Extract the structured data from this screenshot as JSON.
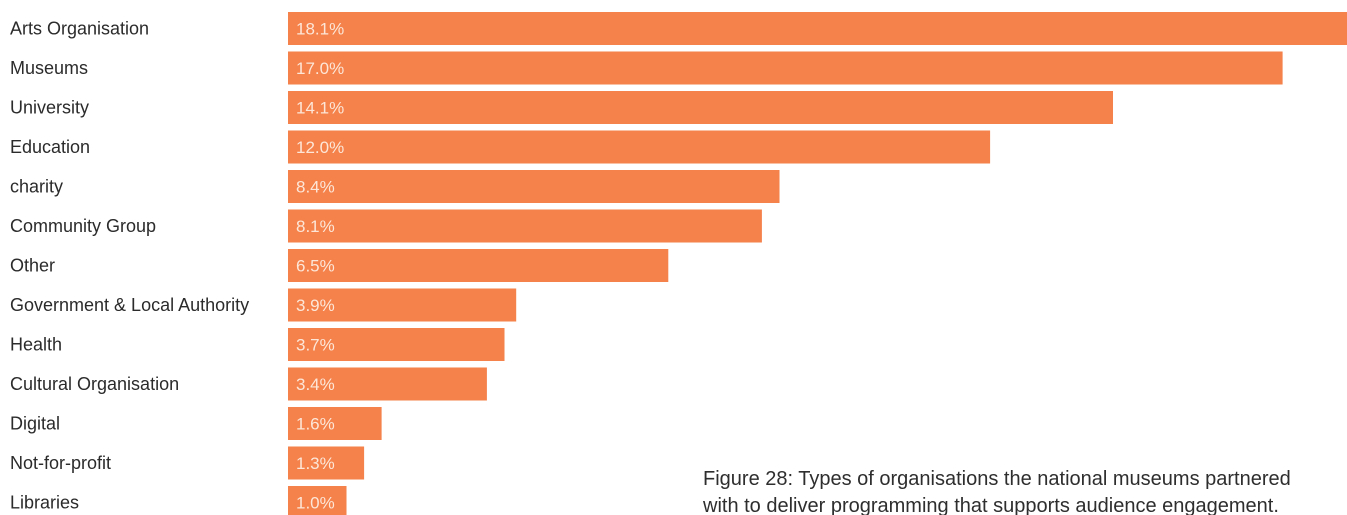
{
  "chart_data": {
    "type": "bar",
    "orientation": "horizontal",
    "categories": [
      "Arts Organisation",
      "Museums",
      "University",
      "Education",
      "charity",
      "Community Group",
      "Other",
      "Government & Local Authority",
      "Health",
      "Cultural Organisation",
      "Digital",
      "Not-for-profit",
      "Libraries"
    ],
    "values": [
      18.1,
      17.0,
      14.1,
      12.0,
      8.4,
      8.1,
      6.5,
      3.9,
      3.7,
      3.4,
      1.6,
      1.3,
      1.0
    ],
    "value_labels": [
      "18.1%",
      "17.0%",
      "14.1%",
      "12.0%",
      "8.4%",
      "8.1%",
      "6.5%",
      "3.9%",
      "3.7%",
      "3.4%",
      "1.6%",
      "1.3%",
      "1.0%"
    ],
    "bar_color": "#f4824a",
    "grid": false,
    "legend": "none"
  },
  "caption": {
    "line1": "Figure 28: Types of organisations the national museums partnered",
    "line2": "with to deliver programming that supports audience engagement."
  }
}
